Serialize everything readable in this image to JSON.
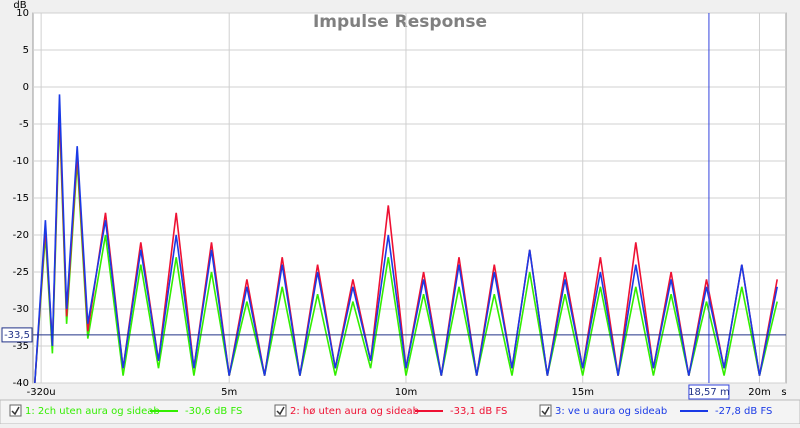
{
  "chart_data": {
    "type": "line",
    "title": "Impulse Response",
    "y_unit": "dB",
    "x_unit": "s",
    "x": [
      -0.5,
      -0.2,
      0.0,
      0.2,
      0.4,
      0.7,
      1.0,
      1.5,
      2.0,
      2.5,
      3.0,
      3.5,
      4.0,
      4.5,
      5.0,
      5.5,
      6.0,
      6.5,
      7.0,
      7.5,
      8.0,
      8.5,
      9.0,
      9.5,
      10.0,
      10.5,
      11.0,
      11.5,
      12.0,
      12.5,
      13.0,
      13.5,
      14.0,
      14.5,
      15.0,
      15.5,
      16.0,
      16.5,
      17.0,
      17.5,
      18.0,
      18.5,
      19.0,
      19.5,
      20.0,
      20.5
    ],
    "xlim": [
      -0.55,
      20.75
    ],
    "ylim": [
      -40,
      10
    ],
    "xticks": [
      {
        "value": -0.32,
        "label": "-320u"
      },
      {
        "value": 5,
        "label": "5m"
      },
      {
        "value": 10,
        "label": "10m"
      },
      {
        "value": 15,
        "label": "15m"
      },
      {
        "value": 20,
        "label": "20m"
      }
    ],
    "yticks": [
      10,
      5,
      0,
      -5,
      -10,
      -15,
      -20,
      -25,
      -30,
      -35,
      -40
    ],
    "grid": true,
    "series": [
      {
        "name": "1: 2ch uten aura og sideab",
        "color": "#33ee00",
        "level": "-30,6 dB FS",
        "values": [
          -40,
          -20,
          -36,
          -4,
          -32,
          -10,
          -34,
          -20,
          -39,
          -24,
          -38,
          -23,
          -39,
          -25,
          -39,
          -29,
          -39,
          -27,
          -39,
          -28,
          -39,
          -29,
          -38,
          -23,
          -39,
          -28,
          -39,
          -27,
          -39,
          -28,
          -39,
          -25,
          -39,
          -28,
          -39,
          -27,
          -39,
          -27,
          -39,
          -28,
          -39,
          -29,
          -39,
          -27,
          -39,
          -29
        ]
      },
      {
        "name": "2: hø uten aura og sideab",
        "color": "#ee1133",
        "level": "-33,1 dB FS",
        "values": [
          -40,
          -19,
          -35,
          -3,
          -31,
          -9,
          -33,
          -17,
          -38,
          -21,
          -37,
          -17,
          -38,
          -21,
          -39,
          -26,
          -39,
          -23,
          -39,
          -24,
          -38,
          -26,
          -37,
          -16,
          -38,
          -25,
          -39,
          -23,
          -39,
          -24,
          -38,
          -22,
          -39,
          -25,
          -38,
          -23,
          -39,
          -21,
          -38,
          -25,
          -39,
          -26,
          -38,
          -24,
          -39,
          -26
        ]
      },
      {
        "name": "3: ve u aura og sideab",
        "color": "#1a3ae6",
        "level": "-27,8 dB FS",
        "values": [
          -40,
          -18,
          -35,
          -1,
          -30,
          -8,
          -32,
          -18,
          -38,
          -22,
          -37,
          -20,
          -38,
          -22,
          -39,
          -27,
          -39,
          -24,
          -39,
          -25,
          -38,
          -27,
          -37,
          -20,
          -38,
          -26,
          -39,
          -24,
          -39,
          -25,
          -38,
          -22,
          -39,
          -26,
          -38,
          -25,
          -39,
          -24,
          -38,
          -26,
          -39,
          -27,
          -38,
          -24,
          -39,
          -27
        ]
      }
    ],
    "cursor": {
      "x": 18.57,
      "x_label": "18,57 m",
      "y": -33.5,
      "y_label": "-33,5"
    }
  }
}
